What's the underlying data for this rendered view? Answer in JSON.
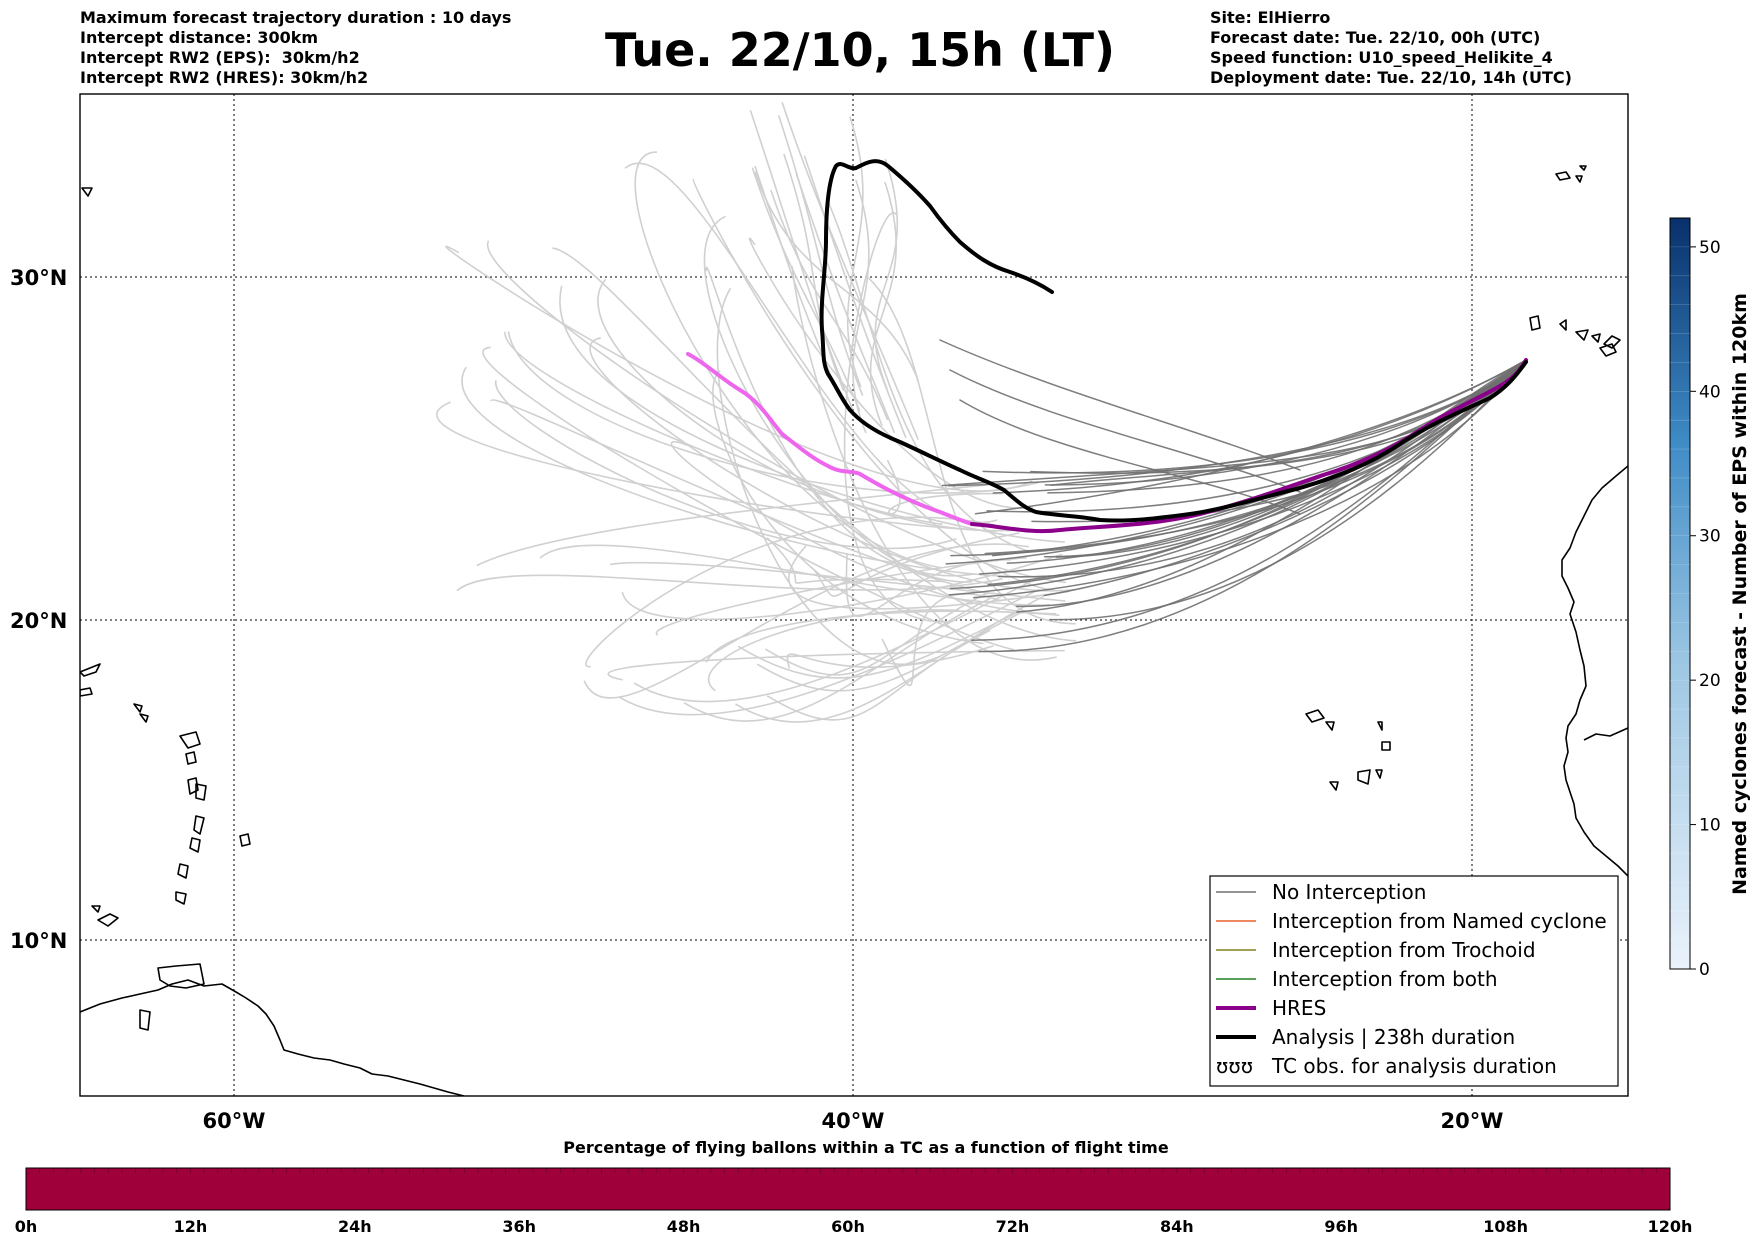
{
  "header": {
    "left_lines": [
      "Maximum forecast trajectory duration : 10 days",
      "Intercept distance: 300km",
      "Intercept RW2 (EPS):  30km/h2",
      "Intercept RW2 (HRES): 30km/h2"
    ],
    "title": "Tue. 22/10, 15h (LT)",
    "right_lines": [
      "Site: ElHierro",
      "Forecast date: Tue. 22/10, 00h (UTC)",
      "Speed function: U10_speed_Helikite_4",
      "Deployment date: Tue. 22/10, 14h (UTC)"
    ]
  },
  "map": {
    "lon_range": [
      -65,
      -15
    ],
    "lat_range": [
      5,
      34.3
    ],
    "lat_labels": [
      {
        "lat": 30,
        "text": "30°N"
      },
      {
        "lat": 20,
        "text": "20°N"
      },
      {
        "lat": 10,
        "text": "10°N"
      }
    ],
    "lon_labels": [
      {
        "lon": -60,
        "text": "60°W"
      },
      {
        "lon": -40,
        "text": "40°W"
      },
      {
        "lon": -20,
        "text": "20°W"
      }
    ],
    "colors": {
      "eps_unintercepted": "#d0d0d0",
      "no_interception": "#707070",
      "hres": "#8b008b",
      "hres_pre": "#ee66ee",
      "analysis": "#000000",
      "named_cyclone": "#e8602c",
      "trochoid": "#808020",
      "both": "#208020"
    }
  },
  "legend": {
    "items": [
      {
        "label": "No Interception",
        "color": "#707070",
        "width": 1.5
      },
      {
        "label": "Interception from Named cyclone",
        "color": "#e8602c",
        "width": 1.5
      },
      {
        "label": "Interception from Trochoid",
        "color": "#808020",
        "width": 1.5
      },
      {
        "label": "Interception from both",
        "color": "#208020",
        "width": 1.5
      },
      {
        "label": "HRES",
        "color": "#8b008b",
        "width": 4
      },
      {
        "label": "Analysis | 238h duration",
        "color": "#000000",
        "width": 4
      },
      {
        "label": "TC obs. for analysis duration",
        "symbol": "ʊʊʊ"
      }
    ]
  },
  "colorbar": {
    "title": "Named cyclones forecast - Number of EPS within 120km",
    "ticks": [
      "0",
      "10",
      "20",
      "30",
      "40",
      "50"
    ],
    "range": [
      0,
      52
    ]
  },
  "time_bar": {
    "title": "Percentage of flying ballons within a TC as a function of flight time",
    "ticks": [
      "0h",
      "12h",
      "24h",
      "36h",
      "48h",
      "60h",
      "72h",
      "84h",
      "96h",
      "108h",
      "120h"
    ],
    "fill_color": "#a0003a"
  }
}
